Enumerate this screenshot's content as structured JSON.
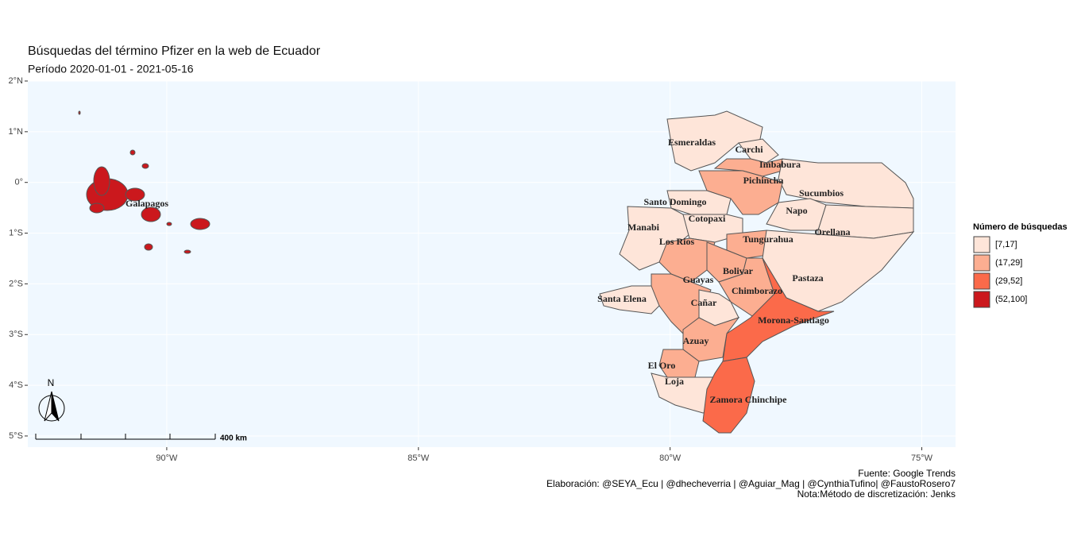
{
  "title": "Búsquedas del término Pfizer en la web de Ecuador",
  "subtitle": "Período 2020-01-01 - 2021-05-16",
  "map": {
    "xlim": [
      -92.76,
      -74.33
    ],
    "ylim": [
      -5.22,
      2.0
    ],
    "xticks": [
      {
        "value": -90,
        "label": "90°W"
      },
      {
        "value": -85,
        "label": "85°W"
      },
      {
        "value": -80,
        "label": "80°W"
      },
      {
        "value": -75,
        "label": "75°W"
      }
    ],
    "yticks": [
      {
        "value": 2,
        "label": "2°N"
      },
      {
        "value": 1,
        "label": "1°N"
      },
      {
        "value": 0,
        "label": "0°"
      },
      {
        "value": -1,
        "label": "1°S"
      },
      {
        "value": -2,
        "label": "2°S"
      },
      {
        "value": -3,
        "label": "3°S"
      },
      {
        "value": -4,
        "label": "4°S"
      },
      {
        "value": -5,
        "label": "5°S"
      }
    ],
    "grid": true,
    "background": "#F0F8FF",
    "provinces": [
      {
        "name": "Esmeraldas",
        "color": "#FEE5D9"
      },
      {
        "name": "Carchi",
        "color": "#FEE5D9"
      },
      {
        "name": "Imbabura",
        "color": "#FCAE91"
      },
      {
        "name": "Sucumbios",
        "color": "#FEE5D9"
      },
      {
        "name": "Pichincha",
        "color": "#FCAE91"
      },
      {
        "name": "Santo Domingo",
        "color": "#FEE5D9"
      },
      {
        "name": "Napo",
        "color": "#FEE5D9"
      },
      {
        "name": "Orellana",
        "color": "#FEE5D9"
      },
      {
        "name": "Manabi",
        "color": "#FEE5D9"
      },
      {
        "name": "Cotopaxi",
        "color": "#FEE5D9"
      },
      {
        "name": "Los Rios",
        "color": "#FCAE91"
      },
      {
        "name": "Tungurahua",
        "color": "#FCAE91"
      },
      {
        "name": "Pastaza",
        "color": "#FEE5D9"
      },
      {
        "name": "Bolivar",
        "color": "#FCAE91"
      },
      {
        "name": "Chimborazo",
        "color": "#FCAE91"
      },
      {
        "name": "Morona-Santiago",
        "color": "#FB6A4A"
      },
      {
        "name": "Guayas",
        "color": "#FCAE91"
      },
      {
        "name": "Santa Elena",
        "color": "#FEE5D9"
      },
      {
        "name": "Cañar",
        "color": "#FEE5D9"
      },
      {
        "name": "Azuay",
        "color": "#FCAE91"
      },
      {
        "name": "El Oro",
        "color": "#FCAE91"
      },
      {
        "name": "Loja",
        "color": "#FEE5D9"
      },
      {
        "name": "Zamora Chinchipe",
        "color": "#FB6A4A"
      },
      {
        "name": "Galapagos",
        "color": "#CB181D"
      }
    ],
    "scale_label": "400 km",
    "north_label": "N"
  },
  "legend": {
    "title": "Número de búsquedas",
    "items": [
      {
        "label": "[7,17]",
        "color": "#FEE5D9"
      },
      {
        "label": "(17,29]",
        "color": "#FCAE91"
      },
      {
        "label": "(29,52]",
        "color": "#FB6A4A"
      },
      {
        "label": "(52,100]",
        "color": "#CB181D"
      }
    ]
  },
  "caption": [
    "Fuente: Google Trends",
    "Elaboración: @SEYA_Ecu | @dhecheverria | @Aguiar_Mag | @CynthiaTufino| @FaustoRosero7",
    "Nota:Método de discretización: Jenks"
  ]
}
